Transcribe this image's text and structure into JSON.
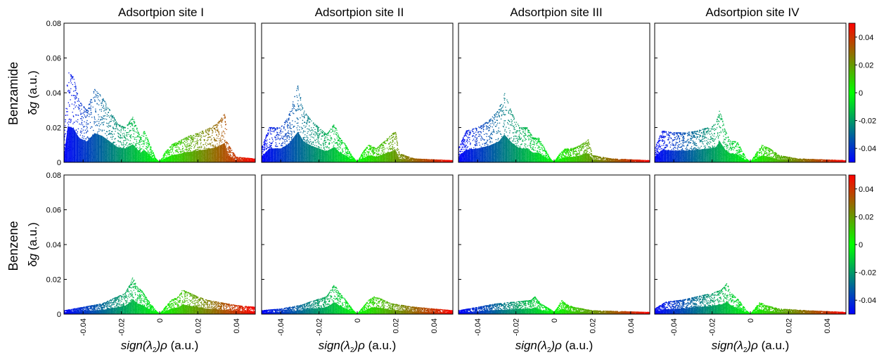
{
  "chart_data": {
    "type": "scatter",
    "columns": [
      "Adsortpion site I",
      "Adsortpion site II",
      "Adsortpion site III",
      "Adsortpion site IV"
    ],
    "rows": [
      "Benzamide",
      "Benzene"
    ],
    "xlabel_italic": "sign",
    "xlabel_lambda": "λ",
    "xlabel_sub": "2",
    "xlabel_rho": "ρ",
    "xlabel_unit": " (a.u.)",
    "ylabel_delta": "δ",
    "ylabel_g": "g",
    "ylabel_unit": " (a.u.)",
    "xlim": [
      -0.05,
      0.05
    ],
    "ylim": [
      0,
      0.08
    ],
    "xticks": [
      -0.04,
      -0.02,
      0,
      0.02,
      0.04
    ],
    "xtick_labels": [
      "-0.04",
      "-0.02",
      "0",
      "0.02",
      "0.04"
    ],
    "yticks": [
      0,
      0.02,
      0.04,
      0.06,
      0.08
    ],
    "ytick_labels": [
      "0",
      "0.02",
      "0.04",
      "0.06",
      "0.08"
    ],
    "colorbar": {
      "range": [
        -0.05,
        0.05
      ],
      "ticks": [
        0.04,
        0.02,
        0,
        -0.02,
        -0.04
      ],
      "tick_labels": [
        "0.04",
        "0.02",
        "0",
        "-0.02",
        "-0.04"
      ],
      "colors": [
        "#0000ff",
        "#00ff00",
        "#ff0000"
      ]
    },
    "panels": [
      {
        "row": 0,
        "col": 0,
        "envelope": [
          [
            -0.05,
            0.01
          ],
          [
            -0.048,
            0.052
          ],
          [
            -0.045,
            0.049
          ],
          [
            -0.042,
            0.035
          ],
          [
            -0.038,
            0.03
          ],
          [
            -0.034,
            0.042
          ],
          [
            -0.03,
            0.038
          ],
          [
            -0.026,
            0.03
          ],
          [
            -0.022,
            0.022
          ],
          [
            -0.018,
            0.02
          ],
          [
            -0.014,
            0.026
          ],
          [
            -0.01,
            0.014
          ],
          [
            -0.008,
            0.018
          ],
          [
            -0.005,
            0.01
          ],
          [
            -0.002,
            0.002
          ],
          [
            0.0,
            0.0
          ],
          [
            0.003,
            0.006
          ],
          [
            0.006,
            0.01
          ],
          [
            0.01,
            0.012
          ],
          [
            0.015,
            0.015
          ],
          [
            0.02,
            0.017
          ],
          [
            0.025,
            0.019
          ],
          [
            0.03,
            0.022
          ],
          [
            0.034,
            0.028
          ],
          [
            0.036,
            0.01
          ],
          [
            0.04,
            0.003
          ],
          [
            0.05,
            0.002
          ]
        ]
      },
      {
        "row": 0,
        "col": 1,
        "envelope": [
          [
            -0.05,
            0.008
          ],
          [
            -0.046,
            0.02
          ],
          [
            -0.04,
            0.02
          ],
          [
            -0.036,
            0.026
          ],
          [
            -0.031,
            0.044
          ],
          [
            -0.028,
            0.03
          ],
          [
            -0.024,
            0.024
          ],
          [
            -0.02,
            0.02
          ],
          [
            -0.016,
            0.016
          ],
          [
            -0.012,
            0.022
          ],
          [
            -0.009,
            0.014
          ],
          [
            -0.006,
            0.01
          ],
          [
            -0.003,
            0.004
          ],
          [
            0.0,
            0.0
          ],
          [
            0.003,
            0.006
          ],
          [
            0.006,
            0.01
          ],
          [
            0.01,
            0.008
          ],
          [
            0.014,
            0.012
          ],
          [
            0.018,
            0.016
          ],
          [
            0.02,
            0.018
          ],
          [
            0.022,
            0.005
          ],
          [
            0.03,
            0.002
          ],
          [
            0.05,
            0.001
          ]
        ]
      },
      {
        "row": 0,
        "col": 2,
        "envelope": [
          [
            -0.05,
            0.008
          ],
          [
            -0.046,
            0.018
          ],
          [
            -0.04,
            0.02
          ],
          [
            -0.034,
            0.024
          ],
          [
            -0.029,
            0.03
          ],
          [
            -0.026,
            0.04
          ],
          [
            -0.022,
            0.028
          ],
          [
            -0.018,
            0.02
          ],
          [
            -0.014,
            0.02
          ],
          [
            -0.011,
            0.014
          ],
          [
            -0.008,
            0.014
          ],
          [
            -0.005,
            0.008
          ],
          [
            -0.002,
            0.002
          ],
          [
            0.0,
            0.0
          ],
          [
            0.003,
            0.005
          ],
          [
            0.006,
            0.008
          ],
          [
            0.01,
            0.008
          ],
          [
            0.014,
            0.01
          ],
          [
            0.018,
            0.013
          ],
          [
            0.02,
            0.004
          ],
          [
            0.03,
            0.002
          ],
          [
            0.05,
            0.001
          ]
        ]
      },
      {
        "row": 0,
        "col": 3,
        "envelope": [
          [
            -0.05,
            0.008
          ],
          [
            -0.046,
            0.018
          ],
          [
            -0.04,
            0.017
          ],
          [
            -0.034,
            0.017
          ],
          [
            -0.028,
            0.018
          ],
          [
            -0.022,
            0.02
          ],
          [
            -0.018,
            0.022
          ],
          [
            -0.016,
            0.03
          ],
          [
            -0.013,
            0.018
          ],
          [
            -0.01,
            0.012
          ],
          [
            -0.007,
            0.012
          ],
          [
            -0.004,
            0.006
          ],
          [
            -0.002,
            0.002
          ],
          [
            0.0,
            0.0
          ],
          [
            0.003,
            0.005
          ],
          [
            0.006,
            0.01
          ],
          [
            0.01,
            0.008
          ],
          [
            0.015,
            0.004
          ],
          [
            0.025,
            0.002
          ],
          [
            0.05,
            0.001
          ]
        ]
      },
      {
        "row": 1,
        "col": 0,
        "envelope": [
          [
            -0.05,
            0.002
          ],
          [
            -0.04,
            0.004
          ],
          [
            -0.03,
            0.006
          ],
          [
            -0.022,
            0.01
          ],
          [
            -0.018,
            0.012
          ],
          [
            -0.015,
            0.018
          ],
          [
            -0.014,
            0.022
          ],
          [
            -0.012,
            0.016
          ],
          [
            -0.009,
            0.013
          ],
          [
            -0.006,
            0.008
          ],
          [
            -0.002,
            0.002
          ],
          [
            0.0,
            0.0
          ],
          [
            0.003,
            0.004
          ],
          [
            0.006,
            0.008
          ],
          [
            0.01,
            0.01
          ],
          [
            0.012,
            0.014
          ],
          [
            0.016,
            0.012
          ],
          [
            0.02,
            0.01
          ],
          [
            0.025,
            0.008
          ],
          [
            0.03,
            0.007
          ],
          [
            0.04,
            0.005
          ],
          [
            0.05,
            0.004
          ]
        ]
      },
      {
        "row": 1,
        "col": 1,
        "envelope": [
          [
            -0.05,
            0.002
          ],
          [
            -0.04,
            0.003
          ],
          [
            -0.03,
            0.005
          ],
          [
            -0.022,
            0.008
          ],
          [
            -0.016,
            0.01
          ],
          [
            -0.012,
            0.017
          ],
          [
            -0.009,
            0.012
          ],
          [
            -0.006,
            0.008
          ],
          [
            -0.002,
            0.002
          ],
          [
            0.0,
            0.0
          ],
          [
            0.003,
            0.004
          ],
          [
            0.006,
            0.008
          ],
          [
            0.009,
            0.01
          ],
          [
            0.012,
            0.009
          ],
          [
            0.018,
            0.006
          ],
          [
            0.03,
            0.004
          ],
          [
            0.05,
            0.002
          ]
        ]
      },
      {
        "row": 1,
        "col": 2,
        "envelope": [
          [
            -0.05,
            0.002
          ],
          [
            -0.04,
            0.004
          ],
          [
            -0.03,
            0.006
          ],
          [
            -0.02,
            0.007
          ],
          [
            -0.012,
            0.008
          ],
          [
            -0.01,
            0.01
          ],
          [
            -0.007,
            0.006
          ],
          [
            -0.004,
            0.004
          ],
          [
            -0.001,
            0.002
          ],
          [
            0.0,
            0.001
          ],
          [
            0.002,
            0.004
          ],
          [
            0.004,
            0.008
          ],
          [
            0.006,
            0.006
          ],
          [
            0.01,
            0.004
          ],
          [
            0.02,
            0.002
          ],
          [
            0.05,
            0.001
          ]
        ]
      },
      {
        "row": 1,
        "col": 3,
        "envelope": [
          [
            -0.05,
            0.003
          ],
          [
            -0.044,
            0.007
          ],
          [
            -0.036,
            0.008
          ],
          [
            -0.028,
            0.01
          ],
          [
            -0.02,
            0.012
          ],
          [
            -0.015,
            0.014
          ],
          [
            -0.012,
            0.018
          ],
          [
            -0.01,
            0.012
          ],
          [
            -0.006,
            0.008
          ],
          [
            -0.002,
            0.002
          ],
          [
            0.0,
            0.0
          ],
          [
            0.003,
            0.004
          ],
          [
            0.005,
            0.007
          ],
          [
            0.008,
            0.005
          ],
          [
            0.015,
            0.003
          ],
          [
            0.03,
            0.002
          ],
          [
            0.05,
            0.001
          ]
        ]
      }
    ]
  }
}
